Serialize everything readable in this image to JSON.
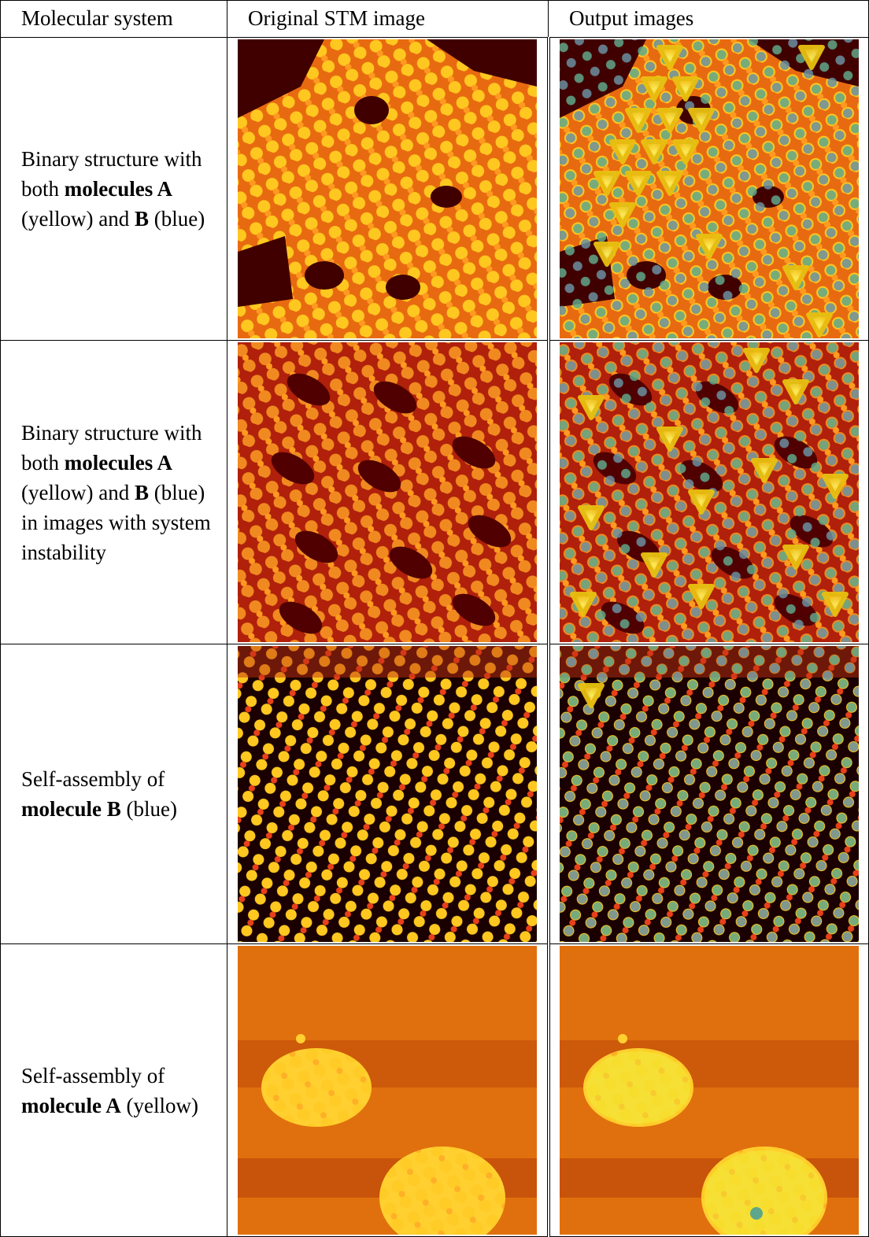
{
  "table": {
    "header": [
      "Molecular system",
      "Original STM image",
      "Output images"
    ],
    "rows": [
      [
        {
          "text": "Binary structure with both "
        },
        {
          "text": "molecules A",
          "bold": true
        },
        {
          "text": " (yellow) and "
        },
        {
          "text": "B",
          "bold": true
        },
        {
          "text": " (blue)"
        }
      ],
      [
        {
          "text": "Binary structure with both "
        },
        {
          "text": "molecules A",
          "bold": true
        },
        {
          "text": " (yellow) and "
        },
        {
          "text": "B",
          "bold": true
        },
        {
          "text": " (blue) in images with system instability"
        }
      ],
      [
        {
          "text": "Self-assembly of "
        },
        {
          "text": "molecule B",
          "bold": true
        },
        {
          "text": " (blue)"
        }
      ],
      [
        {
          "text": "Self-assembly of "
        },
        {
          "text": "molecule A",
          "bold": true
        },
        {
          "text": " (yellow)"
        }
      ]
    ]
  }
}
